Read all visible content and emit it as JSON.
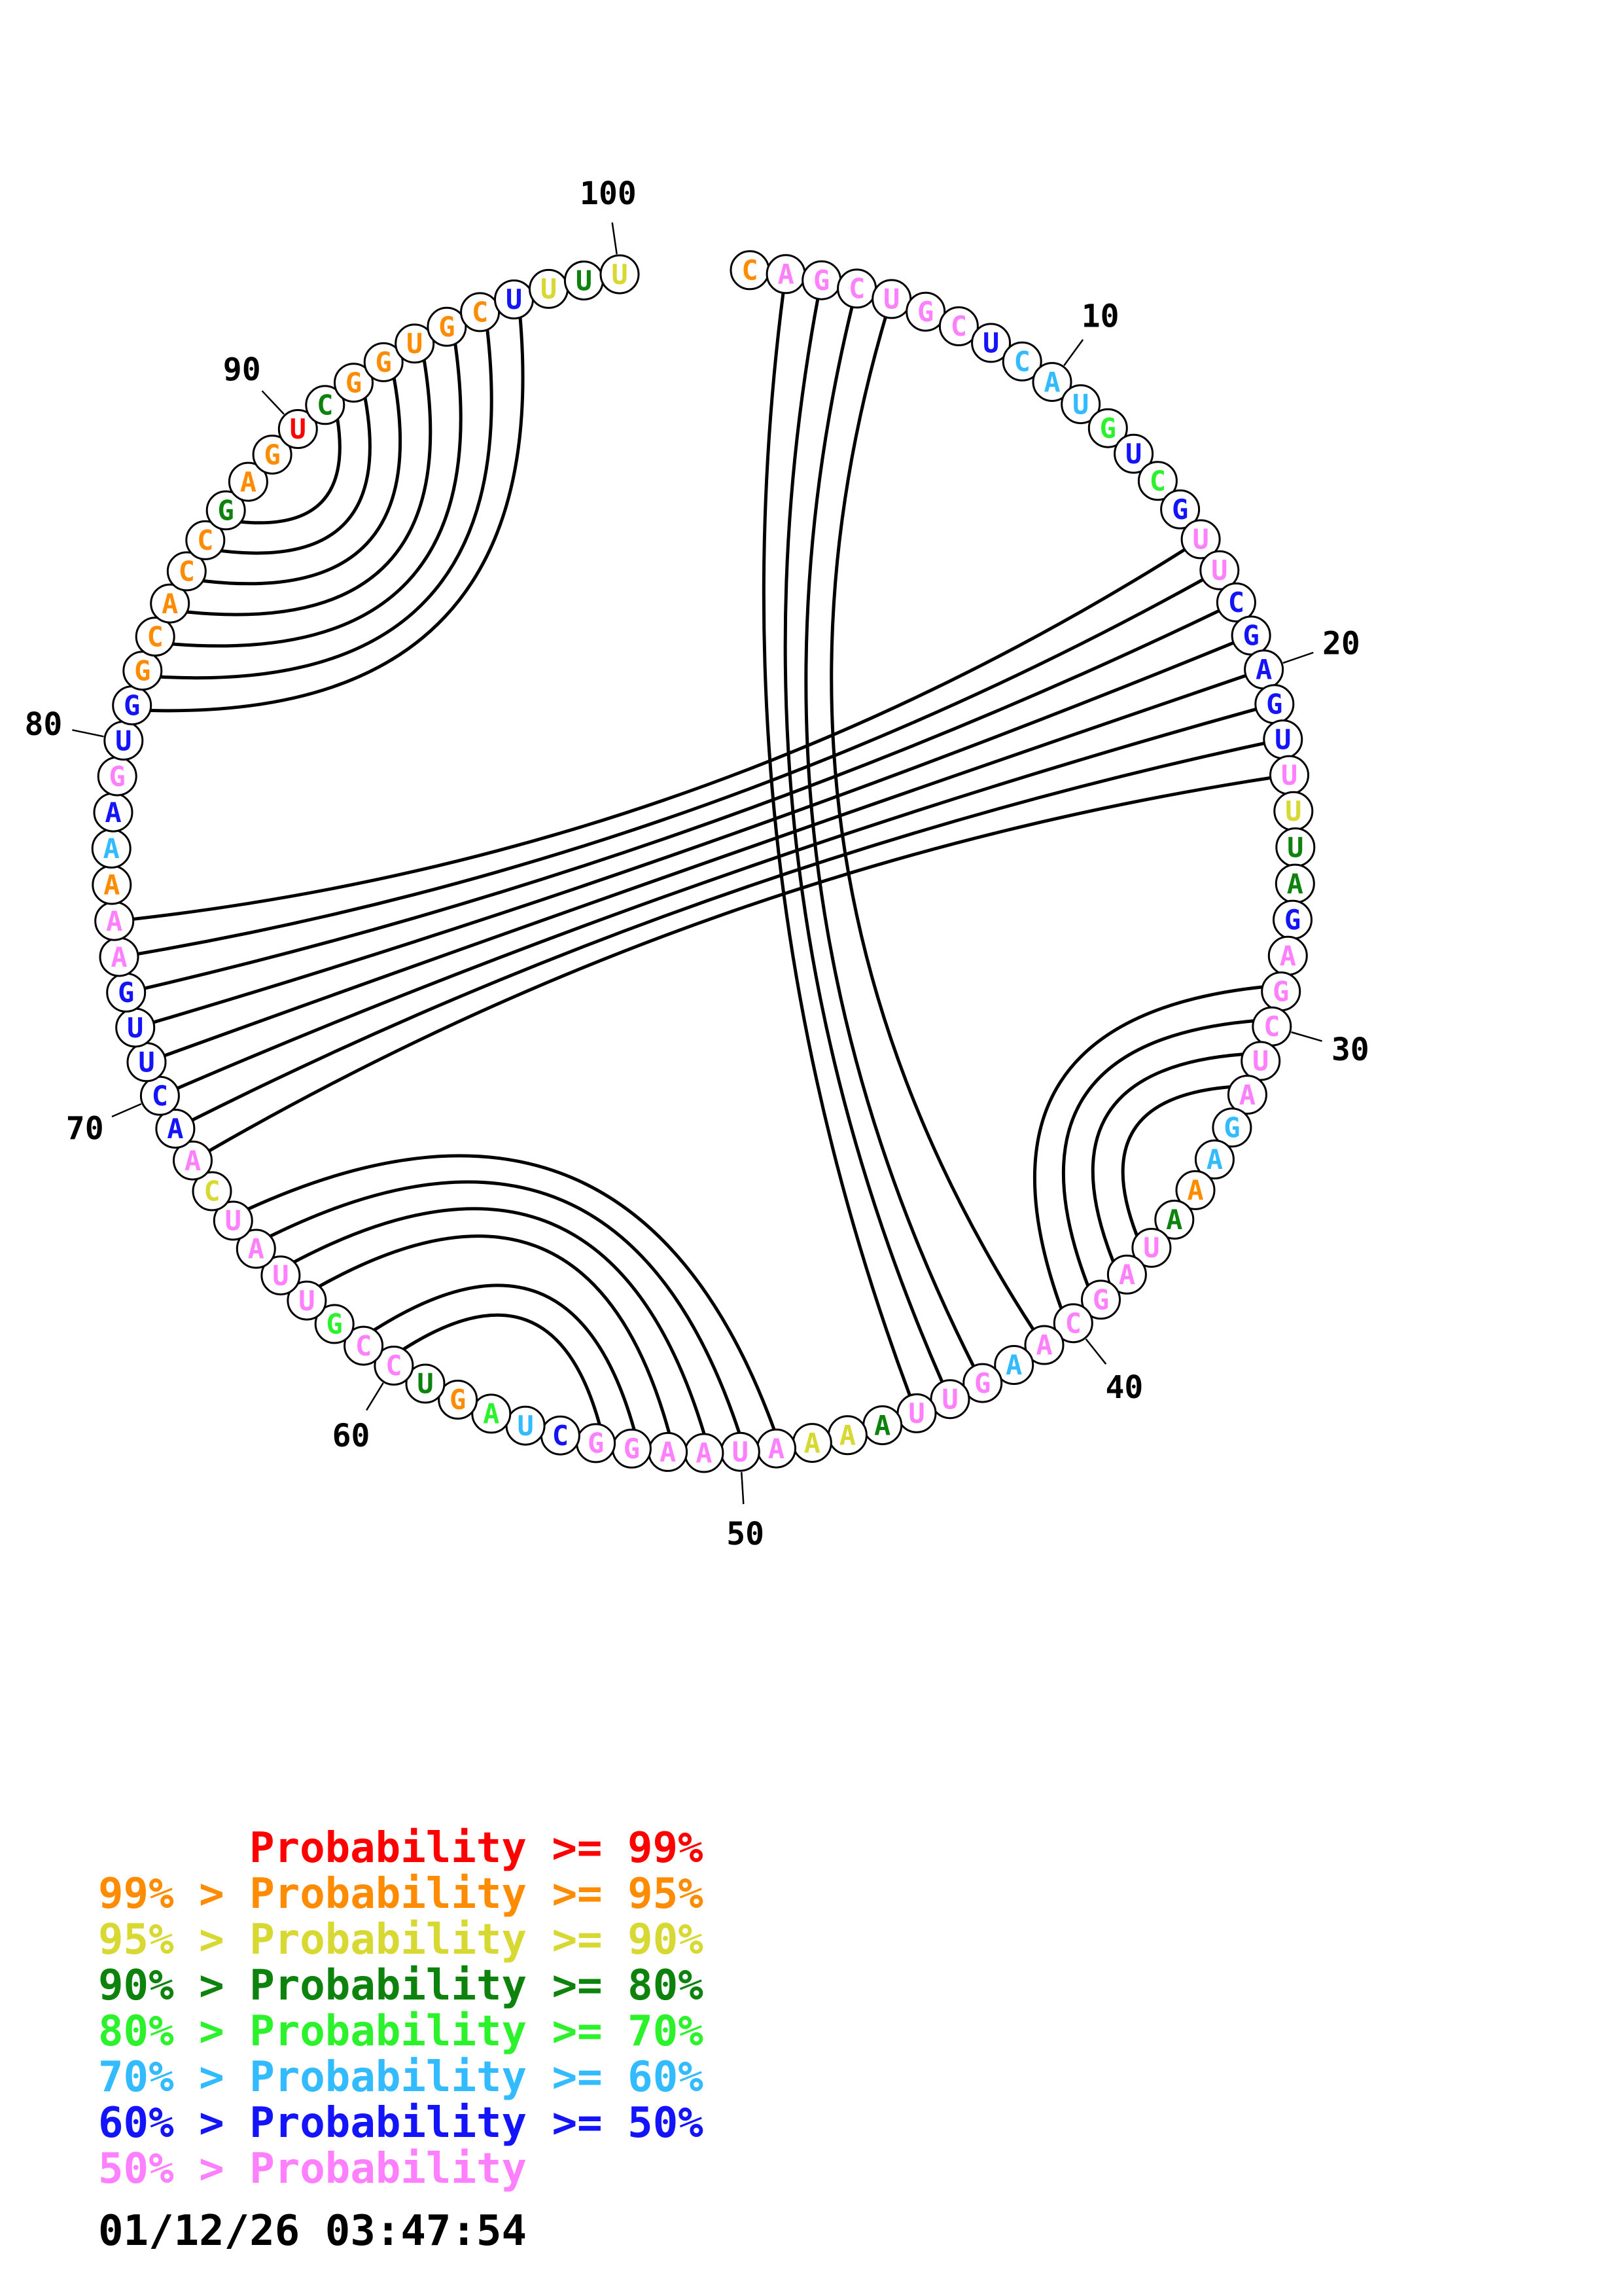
{
  "chart_data": {
    "type": "arc-diagram",
    "subtype": "rna-secondary-structure-circle-plot",
    "title": "",
    "sequence": "CAGCUGCUCAUGUCGUUCGAGUUUUAGAGCUAGAAAUAGCAAGUUAAAAUAAGGCUAGUCCGUUAUCAACUUGAAAAAGUGGCACCGAGUCGGUGCUUUU",
    "length": 100,
    "nucleotide_color_classes": [
      "o",
      "v",
      "v",
      "v",
      "v",
      "v",
      "v",
      "b",
      "c",
      "c",
      "c",
      "g",
      "b",
      "g",
      "b",
      "v",
      "v",
      "b",
      "b",
      "b",
      "b",
      "b",
      "v",
      "y",
      "d",
      "d",
      "b",
      "v",
      "v",
      "v",
      "v",
      "v",
      "c",
      "c",
      "o",
      "d",
      "v",
      "v",
      "v",
      "v",
      "v",
      "c",
      "v",
      "v",
      "v",
      "d",
      "y",
      "y",
      "v",
      "v",
      "v",
      "v",
      "v",
      "v",
      "b",
      "c",
      "g",
      "o",
      "d",
      "v",
      "v",
      "g",
      "v",
      "v",
      "v",
      "v",
      "y",
      "v",
      "b",
      "b",
      "b",
      "b",
      "b",
      "v",
      "v",
      "o",
      "c",
      "b",
      "v",
      "b",
      "b",
      "o",
      "o",
      "o",
      "o",
      "o",
      "d",
      "o",
      "o",
      "r",
      "d",
      "o",
      "o",
      "o",
      "o",
      "o",
      "b",
      "y",
      "d",
      "y"
    ],
    "palette": {
      "r": "#FF0000",
      "o": "#FF8C00",
      "y": "#D8D832",
      "d": "#0D830D",
      "g": "#2BF22B",
      "c": "#33BBFF",
      "b": "#1414FA",
      "v": "#FF80FF"
    },
    "base_pairs": [
      [
        2,
        45
      ],
      [
        3,
        44
      ],
      [
        4,
        43
      ],
      [
        5,
        41
      ],
      [
        16,
        75
      ],
      [
        17,
        74
      ],
      [
        18,
        73
      ],
      [
        19,
        72
      ],
      [
        20,
        71
      ],
      [
        21,
        70
      ],
      [
        22,
        69
      ],
      [
        23,
        68
      ],
      [
        29,
        40
      ],
      [
        30,
        39
      ],
      [
        31,
        38
      ],
      [
        32,
        37
      ],
      [
        49,
        66
      ],
      [
        50,
        65
      ],
      [
        51,
        64
      ],
      [
        52,
        63
      ],
      [
        53,
        61
      ],
      [
        54,
        60
      ],
      [
        81,
        97
      ],
      [
        82,
        96
      ],
      [
        83,
        95
      ],
      [
        84,
        94
      ],
      [
        85,
        93
      ],
      [
        86,
        92
      ],
      [
        87,
        91
      ]
    ],
    "position_labels": [
      "10",
      "20",
      "30",
      "40",
      "50",
      "60",
      "70",
      "80",
      "90",
      "100"
    ],
    "legend": {
      "rows": [
        {
          "text": "Probability >= 99%",
          "color": "#FF0000",
          "indent": true
        },
        {
          "text": "99% > Probability >= 95%",
          "color": "#FF8C00",
          "indent": false
        },
        {
          "text": "95% > Probability >= 90%",
          "color": "#D8D832",
          "indent": false
        },
        {
          "text": "90% > Probability >= 80%",
          "color": "#0D830D",
          "indent": false
        },
        {
          "text": "80% > Probability >= 70%",
          "color": "#2BF22B",
          "indent": false
        },
        {
          "text": "70% > Probability >= 60%",
          "color": "#33BBFF",
          "indent": false
        },
        {
          "text": "60% > Probability >= 50%",
          "color": "#1414FA",
          "indent": false
        },
        {
          "text": "50% > Probability",
          "color": "#FF80FF",
          "indent": false
        }
      ]
    },
    "timestamp": "01/12/26 03:47:54"
  }
}
